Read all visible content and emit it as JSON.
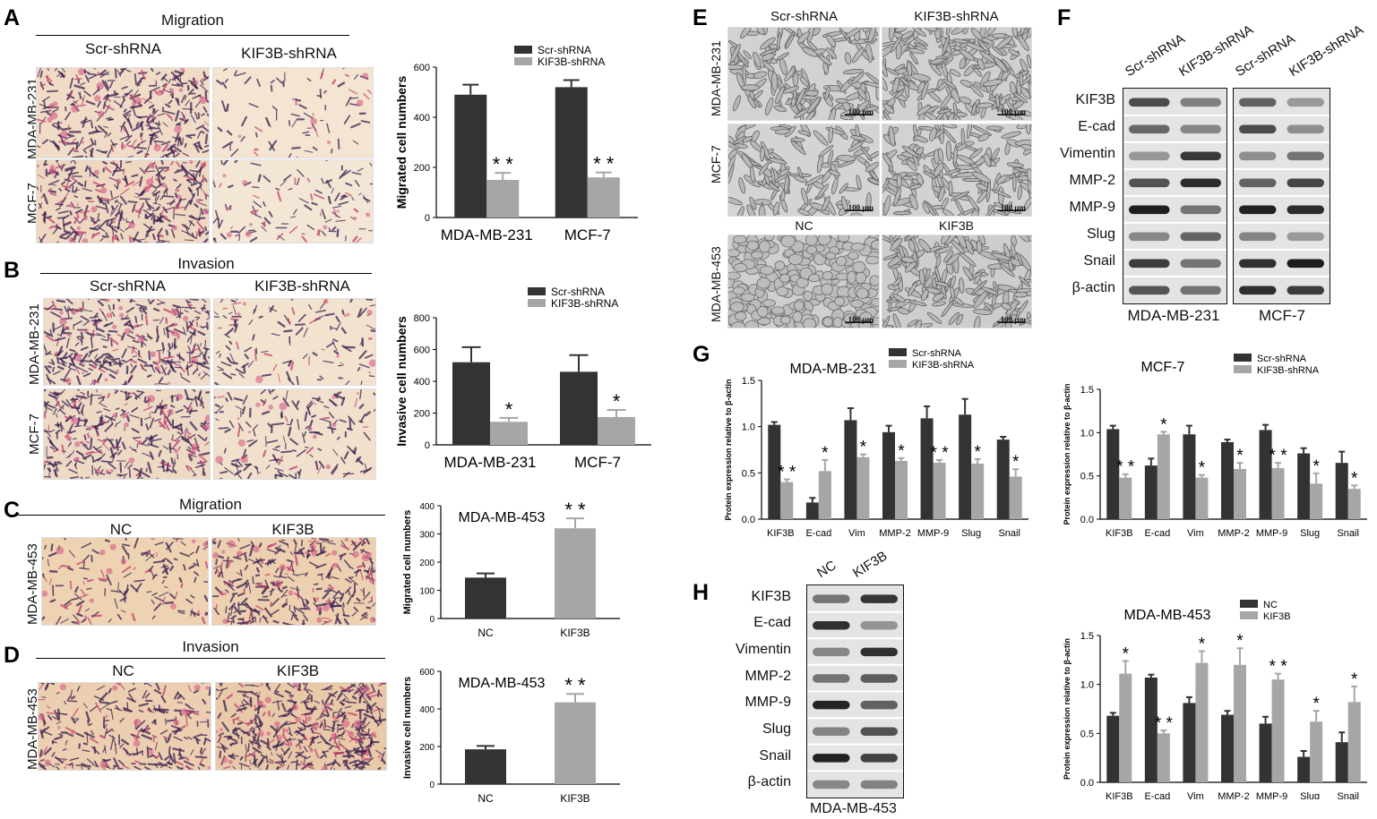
{
  "panels": {
    "A": {
      "letter": "A",
      "header": "Migration",
      "col_left": "Scr-shRNA",
      "col_right": "KIF3B-shRNA",
      "row_top": "MDA-MB-231",
      "row_bottom": "MCF-7"
    },
    "B": {
      "letter": "B",
      "header": "Invasion",
      "col_left": "Scr-shRNA",
      "col_right": "KIF3B-shRNA",
      "row_top": "MDA-MB-231",
      "row_bottom": "MCF-7"
    },
    "C": {
      "letter": "C",
      "header": "Migration",
      "col_left": "NC",
      "col_right": "KIF3B",
      "row": "MDA-MB-453"
    },
    "D": {
      "letter": "D",
      "header": "Invasion",
      "col_left": "NC",
      "col_right": "KIF3B",
      "row": "MDA-MB-453"
    },
    "E": {
      "letter": "E",
      "col_left": "Scr-shRNA",
      "col_right": "KIF3B-shRNA",
      "row1": "MDA-MB-231",
      "row2": "MCF-7",
      "row3": "MDA-MB-453",
      "row3_left": "NC",
      "row3_right": "KIF3B",
      "scale": "100 μm"
    },
    "F": {
      "letter": "F",
      "lanes": [
        "Scr-shRNA",
        "KIF3B-shRNA",
        "Scr-shRNA",
        "KIF3B-shRNA"
      ],
      "proteins": [
        "KIF3B",
        "E-cad",
        "Vimentin",
        "MMP-2",
        "MMP-9",
        "Slug",
        "Snail",
        "β-actin"
      ],
      "cell_left": "MDA-MB-231",
      "cell_right": "MCF-7"
    },
    "G": {
      "letter": "G"
    },
    "H": {
      "letter": "H",
      "lanes": [
        "NC",
        "KIF3B"
      ],
      "proteins": [
        "KIF3B",
        "E-cad",
        "Vimentin",
        "MMP-2",
        "MMP-9",
        "Slug",
        "Snail",
        "β-actin"
      ],
      "cell": "MDA-MB-453"
    }
  },
  "colors": {
    "dark": "#333333",
    "light": "#a6a6a6"
  },
  "chart_data": [
    {
      "id": "A-chart",
      "type": "bar",
      "categories": [
        "MDA-MB-231",
        "MCF-7"
      ],
      "series": [
        {
          "name": "Scr-shRNA",
          "values": [
            490,
            520
          ],
          "errors": [
            40,
            28
          ]
        },
        {
          "name": "KIF3B-shRNA",
          "values": [
            150,
            160
          ],
          "errors": [
            28,
            20
          ]
        }
      ],
      "ylabel": "Migrated cell numbers",
      "ylim": [
        0,
        600
      ],
      "yticks": [
        0,
        200,
        400,
        600
      ],
      "annotations": [
        {
          "category": 1,
          "text": "* *",
          "cat": 0
        },
        {
          "text": "* *",
          "cat": 1
        }
      ],
      "sig": [
        "* *",
        "* *"
      ]
    },
    {
      "id": "B-chart",
      "type": "bar",
      "categories": [
        "MDA-MB-231",
        "MCF-7"
      ],
      "series": [
        {
          "name": "Scr-shRNA",
          "values": [
            520,
            460
          ],
          "errors": [
            95,
            105
          ]
        },
        {
          "name": "KIF3B-shRNA",
          "values": [
            145,
            175
          ],
          "errors": [
            25,
            45
          ]
        }
      ],
      "ylabel": "Invasive cell numbers",
      "ylim": [
        0,
        800
      ],
      "yticks": [
        0,
        200,
        400,
        600,
        800
      ],
      "sig": [
        "*",
        "*"
      ]
    },
    {
      "id": "C-chart",
      "type": "bar",
      "title": "MDA-MB-453",
      "categories": [
        "NC",
        "KIF3B"
      ],
      "values": [
        145,
        320
      ],
      "errors": [
        15,
        35
      ],
      "ylabel": "Migrated cell numbers",
      "ylim": [
        0,
        400
      ],
      "yticks": [
        0,
        100,
        200,
        300,
        400
      ],
      "sig": [
        "",
        "* *"
      ]
    },
    {
      "id": "D-chart",
      "type": "bar",
      "title": "MDA-MB-453",
      "categories": [
        "NC",
        "KIF3B"
      ],
      "values": [
        185,
        435
      ],
      "errors": [
        18,
        45
      ],
      "ylabel": "Invasive cell numbers",
      "ylim": [
        0,
        600
      ],
      "yticks": [
        0,
        200,
        400,
        600
      ],
      "sig": [
        "",
        "* *"
      ]
    },
    {
      "id": "G1-chart",
      "type": "bar",
      "title": "MDA-MB-231",
      "categories": [
        "KIF3B",
        "E-cad",
        "Vim",
        "MMP-2",
        "MMP-9",
        "Slug",
        "Snail"
      ],
      "series": [
        {
          "name": "Scr-shRNA",
          "values": [
            1.02,
            0.18,
            1.07,
            0.94,
            1.09,
            1.13,
            0.86
          ],
          "errors": [
            0.03,
            0.05,
            0.13,
            0.07,
            0.13,
            0.17,
            0.03
          ]
        },
        {
          "name": "KIF3B-shRNA",
          "values": [
            0.4,
            0.52,
            0.67,
            0.63,
            0.61,
            0.6,
            0.46
          ],
          "errors": [
            0.03,
            0.12,
            0.03,
            0.03,
            0.03,
            0.05,
            0.08
          ]
        }
      ],
      "ylabel": "Protein expression relative to β-actin",
      "ylim": [
        0,
        1.5
      ],
      "yticks": [
        "0.0",
        "0.5",
        "1.0",
        "1.5"
      ],
      "sig": [
        "* *",
        "*",
        "*",
        "*",
        "* *",
        "*",
        "*"
      ]
    },
    {
      "id": "G2-chart",
      "type": "bar",
      "title": "MCF-7",
      "categories": [
        "KIF3B",
        "E-cad",
        "Vim",
        "MMP-2",
        "MMP-9",
        "Slug",
        "Snail"
      ],
      "series": [
        {
          "name": "Scr-shRNA",
          "values": [
            1.04,
            0.62,
            0.98,
            0.89,
            1.03,
            0.76,
            0.65
          ],
          "errors": [
            0.04,
            0.08,
            0.1,
            0.03,
            0.06,
            0.06,
            0.13
          ]
        },
        {
          "name": "KIF3B-shRNA",
          "values": [
            0.48,
            0.98,
            0.48,
            0.58,
            0.59,
            0.41,
            0.35
          ],
          "errors": [
            0.04,
            0.03,
            0.03,
            0.07,
            0.06,
            0.12,
            0.04
          ]
        }
      ],
      "ylabel": "Protein expression relative to β-actin",
      "ylim": [
        0,
        1.5
      ],
      "yticks": [
        "0.0",
        "0.5",
        "1.0",
        "1.5"
      ],
      "sig": [
        "* *",
        "*",
        "*",
        "*",
        "* *",
        "*",
        "*"
      ]
    },
    {
      "id": "H-chart",
      "type": "bar",
      "title": "MDA-MB-453",
      "categories": [
        "KIF3B",
        "E-cad",
        "Vim",
        "MMP-2",
        "MMP-9",
        "Slug",
        "Snail"
      ],
      "series": [
        {
          "name": "NC",
          "values": [
            0.68,
            1.07,
            0.81,
            0.69,
            0.6,
            0.26,
            0.41
          ],
          "errors": [
            0.03,
            0.03,
            0.06,
            0.04,
            0.07,
            0.06,
            0.1
          ]
        },
        {
          "name": "KIF3B",
          "values": [
            1.11,
            0.5,
            1.22,
            1.2,
            1.05,
            0.62,
            0.82
          ],
          "errors": [
            0.13,
            0.03,
            0.12,
            0.17,
            0.06,
            0.11,
            0.16
          ]
        }
      ],
      "ylabel": "Protein expression relative to β-actin",
      "ylim": [
        0,
        1.5
      ],
      "yticks": [
        "0.0",
        "0.5",
        "1.0",
        "1.5"
      ],
      "sig": [
        "*",
        "* *",
        "*",
        "*",
        "* *",
        "*",
        "*"
      ]
    }
  ]
}
